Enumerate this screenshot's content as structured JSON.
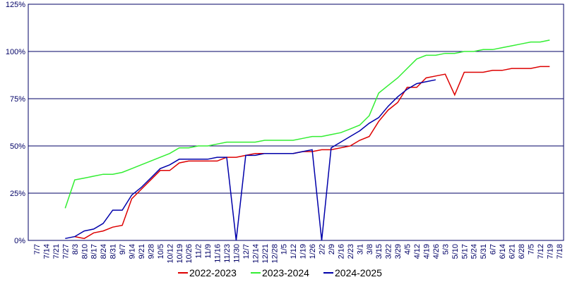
{
  "chart_data": {
    "type": "line",
    "categories": [
      "7/7",
      "7/14",
      "7/21",
      "7/27",
      "8/3",
      "8/10",
      "8/17",
      "8/24",
      "8/31",
      "9/7",
      "9/14",
      "9/21",
      "9/28",
      "10/5",
      "10/12",
      "10/19",
      "10/26",
      "11/2",
      "11/9",
      "11/16",
      "11/23",
      "11/30",
      "12/7",
      "12/14",
      "12/21",
      "12/28",
      "1/5",
      "1/12",
      "1/19",
      "1/26",
      "2/2",
      "2/9",
      "2/16",
      "2/23",
      "3/1",
      "3/8",
      "3/15",
      "3/22",
      "3/29",
      "4/5",
      "4/12",
      "4/19",
      "4/26",
      "5/3",
      "5/10",
      "5/17",
      "5/24",
      "5/31",
      "6/7",
      "6/14",
      "6/21",
      "6/28",
      "7/5",
      "7/12",
      "7/19",
      "7/18"
    ],
    "series": [
      {
        "name": "2022-2023",
        "color": "#dd0000",
        "values": [
          null,
          null,
          null,
          null,
          2,
          1,
          4,
          5,
          7,
          8,
          22,
          27,
          32,
          37,
          37,
          41,
          42,
          42,
          42,
          42,
          44,
          44,
          45,
          46,
          46,
          46,
          46,
          46,
          47,
          47,
          48,
          48,
          49,
          50,
          53,
          55,
          63,
          69,
          73,
          81,
          81,
          86,
          87,
          88,
          77,
          89,
          89,
          89,
          90,
          90,
          91,
          91,
          91,
          92,
          92,
          null
        ]
      },
      {
        "name": "2023-2024",
        "color": "#33ee33",
        "values": [
          null,
          null,
          null,
          17,
          32,
          33,
          34,
          35,
          35,
          36,
          38,
          40,
          42,
          44,
          46,
          49,
          49,
          50,
          50,
          51,
          52,
          52,
          52,
          52,
          53,
          53,
          53,
          53,
          54,
          55,
          55,
          56,
          57,
          59,
          61,
          66,
          78,
          82,
          86,
          91,
          96,
          98,
          98,
          99,
          99,
          100,
          100,
          101,
          101,
          102,
          103,
          104,
          105,
          105,
          106,
          null
        ]
      },
      {
        "name": "2024-2025",
        "color": "#0000aa",
        "values": [
          null,
          null,
          null,
          1,
          2,
          5,
          6,
          9,
          16,
          16,
          24,
          28,
          33,
          38,
          40,
          43,
          43,
          43,
          43,
          44,
          44,
          0,
          45,
          45,
          46,
          46,
          46,
          46,
          47,
          48,
          0,
          49,
          52,
          55,
          58,
          62,
          65,
          71,
          76,
          80,
          83,
          84,
          85,
          null,
          null,
          null,
          null,
          null,
          null,
          null,
          null,
          null,
          null,
          null,
          null,
          null
        ]
      }
    ],
    "ylim": [
      0,
      125
    ],
    "yticks": [
      {
        "value": 0,
        "label": "0%"
      },
      {
        "value": 25,
        "label": "25%"
      },
      {
        "value": 50,
        "label": "50%"
      },
      {
        "value": 75,
        "label": "75%"
      },
      {
        "value": 100,
        "label": "100%"
      },
      {
        "value": 125,
        "label": "125%"
      }
    ],
    "grid": true
  }
}
